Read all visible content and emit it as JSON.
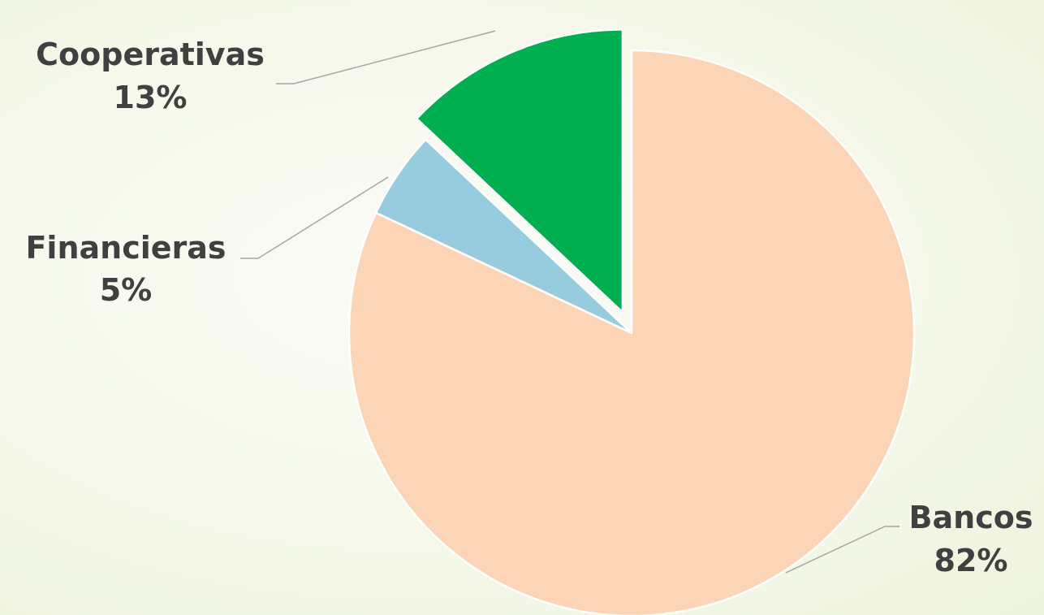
{
  "chart_data": {
    "type": "pie",
    "categories": [
      "Bancos",
      "Financieras",
      "Cooperativas"
    ],
    "values": [
      82,
      5,
      13
    ],
    "value_labels": [
      "82%",
      "5%",
      "13%"
    ],
    "colors": [
      "#fbd5b5",
      "#97ccdf",
      "#00b050"
    ],
    "exploded": [
      false,
      false,
      true
    ],
    "start_angle_deg": 0,
    "direction": "clockwise",
    "title": "",
    "legend": "none",
    "data_labels": "outside with leader lines"
  }
}
